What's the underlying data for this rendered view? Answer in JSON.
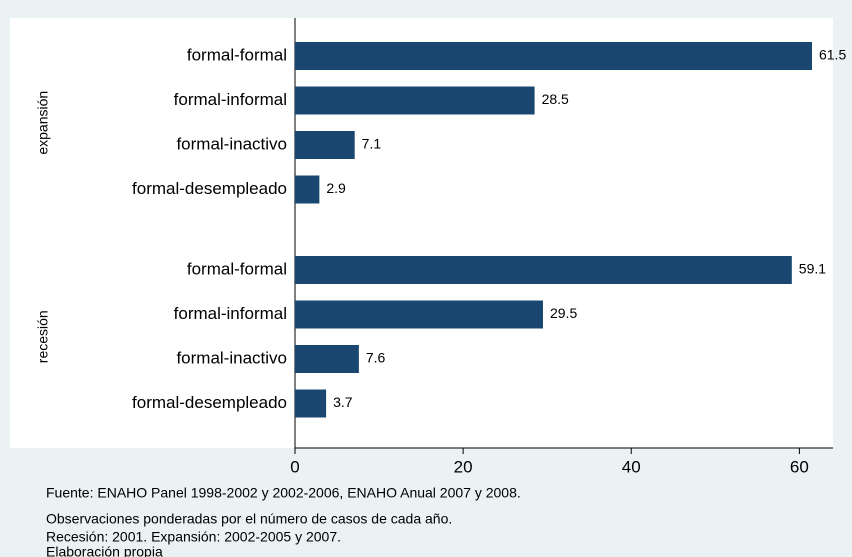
{
  "chart_data": {
    "type": "bar",
    "orientation": "horizontal",
    "color": "#1a476f",
    "groups": [
      {
        "name": "expansión",
        "categories": [
          "formal-formal",
          "formal-informal",
          "formal-inactivo",
          "formal-desempleado"
        ],
        "values": [
          61.5,
          28.5,
          7.1,
          2.9
        ]
      },
      {
        "name": "recesión",
        "categories": [
          "formal-formal",
          "formal-informal",
          "formal-inactivo",
          "formal-desempleado"
        ],
        "values": [
          59.1,
          29.5,
          7.6,
          3.7
        ]
      }
    ],
    "xlim": [
      0,
      64
    ],
    "xticks": [
      0,
      20,
      40,
      60
    ],
    "notes": [
      "Fuente: ENAHO Panel 1998-2002 y 2002-2006, ENAHO Anual 2007 y 2008.",
      "Observaciones ponderadas por el número de casos de cada año.",
      "Recesión: 2001. Expansión: 2002-2005 y 2007.",
      "Elaboración propia"
    ]
  }
}
